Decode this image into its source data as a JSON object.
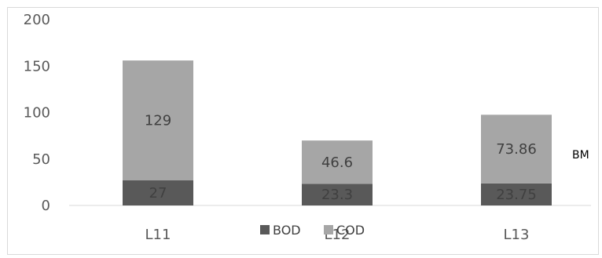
{
  "chart_data": {
    "type": "bar",
    "stacked": true,
    "categories": [
      "L11",
      "L12",
      "L13"
    ],
    "series": [
      {
        "name": "BOD",
        "values": [
          27,
          23.3,
          23.75
        ],
        "color": "#595959",
        "labels": [
          "27",
          "23.3",
          "23.75"
        ]
      },
      {
        "name": "COD",
        "values": [
          129,
          46.6,
          73.86
        ],
        "color": "#a6a6a6",
        "labels": [
          "129",
          "46.6",
          "73.86"
        ]
      }
    ],
    "ylim": [
      0,
      200
    ],
    "yticks": [
      "0",
      "50",
      "100",
      "150",
      "200"
    ],
    "ytick_values": [
      0,
      50,
      100,
      150,
      200
    ],
    "grid": false,
    "legend_position": "bottom",
    "annotation": "BM",
    "frame_color": "#d9d9d9",
    "axis_color": "#d9d9d9"
  }
}
